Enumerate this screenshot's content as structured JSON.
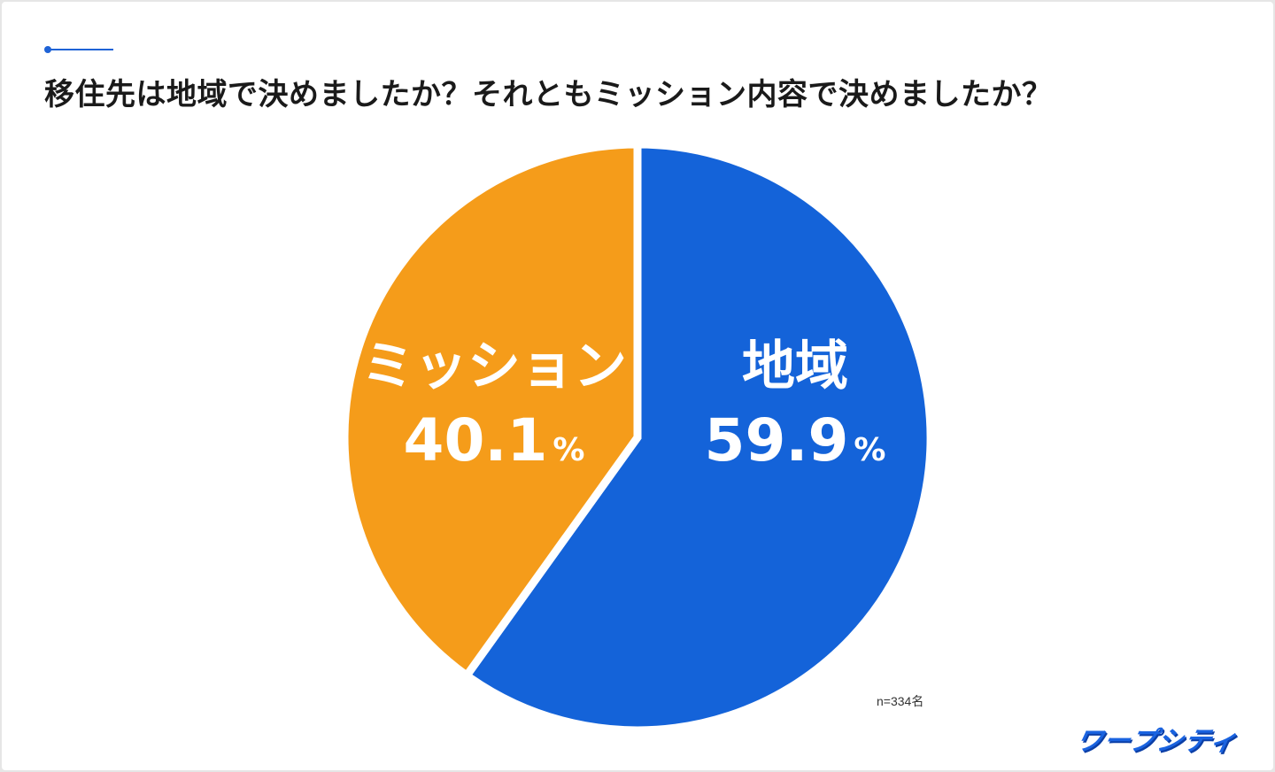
{
  "header": {
    "title": "移住先は地域で決めましたか？それともミッション内容で決めましたか？"
  },
  "colors": {
    "accent": "#1f63d6",
    "region": "#1463d9",
    "mission": "#f59c1a",
    "logo": "#1a63e0"
  },
  "chart_data": {
    "type": "pie",
    "slices": [
      {
        "label": "地域",
        "value": 59.9,
        "value_text": "59.9",
        "unit": "%",
        "color": "#1463d9"
      },
      {
        "label": "ミッション",
        "value": 40.1,
        "value_text": "40.1",
        "unit": "%",
        "color": "#f59c1a"
      }
    ],
    "start_angle": "top",
    "direction": "clockwise"
  },
  "footer": {
    "sample_size": "n=334名",
    "logo_text": "ワープシティ"
  }
}
